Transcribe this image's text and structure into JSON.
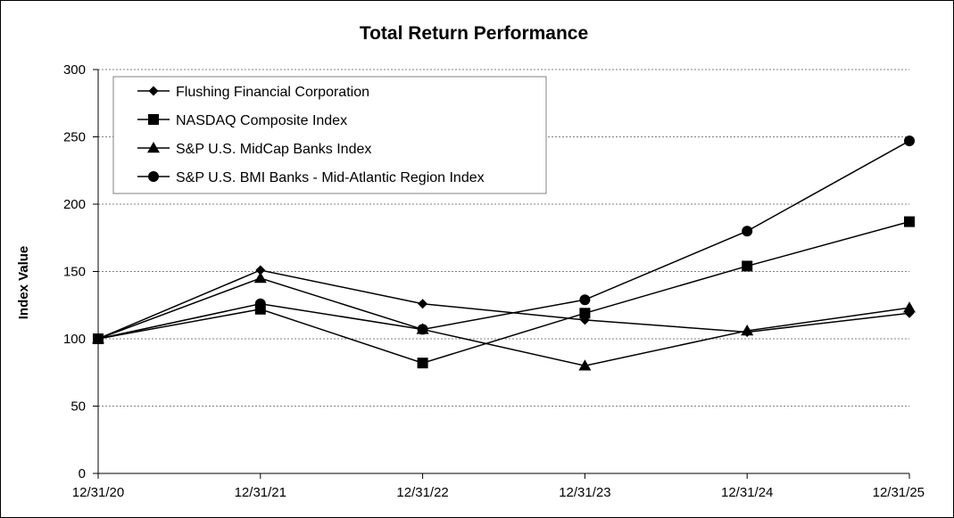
{
  "chart_data": {
    "type": "line",
    "title": "Total Return Performance",
    "xlabel": "",
    "ylabel": "Index Value",
    "ylim": [
      0,
      300
    ],
    "yticks": [
      0,
      50,
      100,
      150,
      200,
      250,
      300
    ],
    "grid": true,
    "legend_position": "top-left",
    "categories": [
      "12/31/20",
      "12/31/21",
      "12/31/22",
      "12/31/23",
      "12/31/24",
      "12/31/25"
    ],
    "series": [
      {
        "name": "Flushing Financial Corporation",
        "marker": "diamond",
        "values": [
          100,
          151,
          126,
          114,
          105,
          119
        ]
      },
      {
        "name": "NASDAQ Composite Index",
        "marker": "square",
        "values": [
          100,
          122,
          82,
          119,
          154,
          187
        ]
      },
      {
        "name": "S&P U.S. MidCap Banks Index",
        "marker": "triangle",
        "values": [
          100,
          145,
          107,
          80,
          106,
          123
        ]
      },
      {
        "name": "S&P U.S. BMI Banks - Mid-Atlantic Region Index",
        "marker": "circle",
        "values": [
          100,
          126,
          107,
          129,
          180,
          247
        ]
      }
    ],
    "colors": {
      "line": "#000000",
      "grid": "#808080",
      "border": "#000000"
    }
  }
}
